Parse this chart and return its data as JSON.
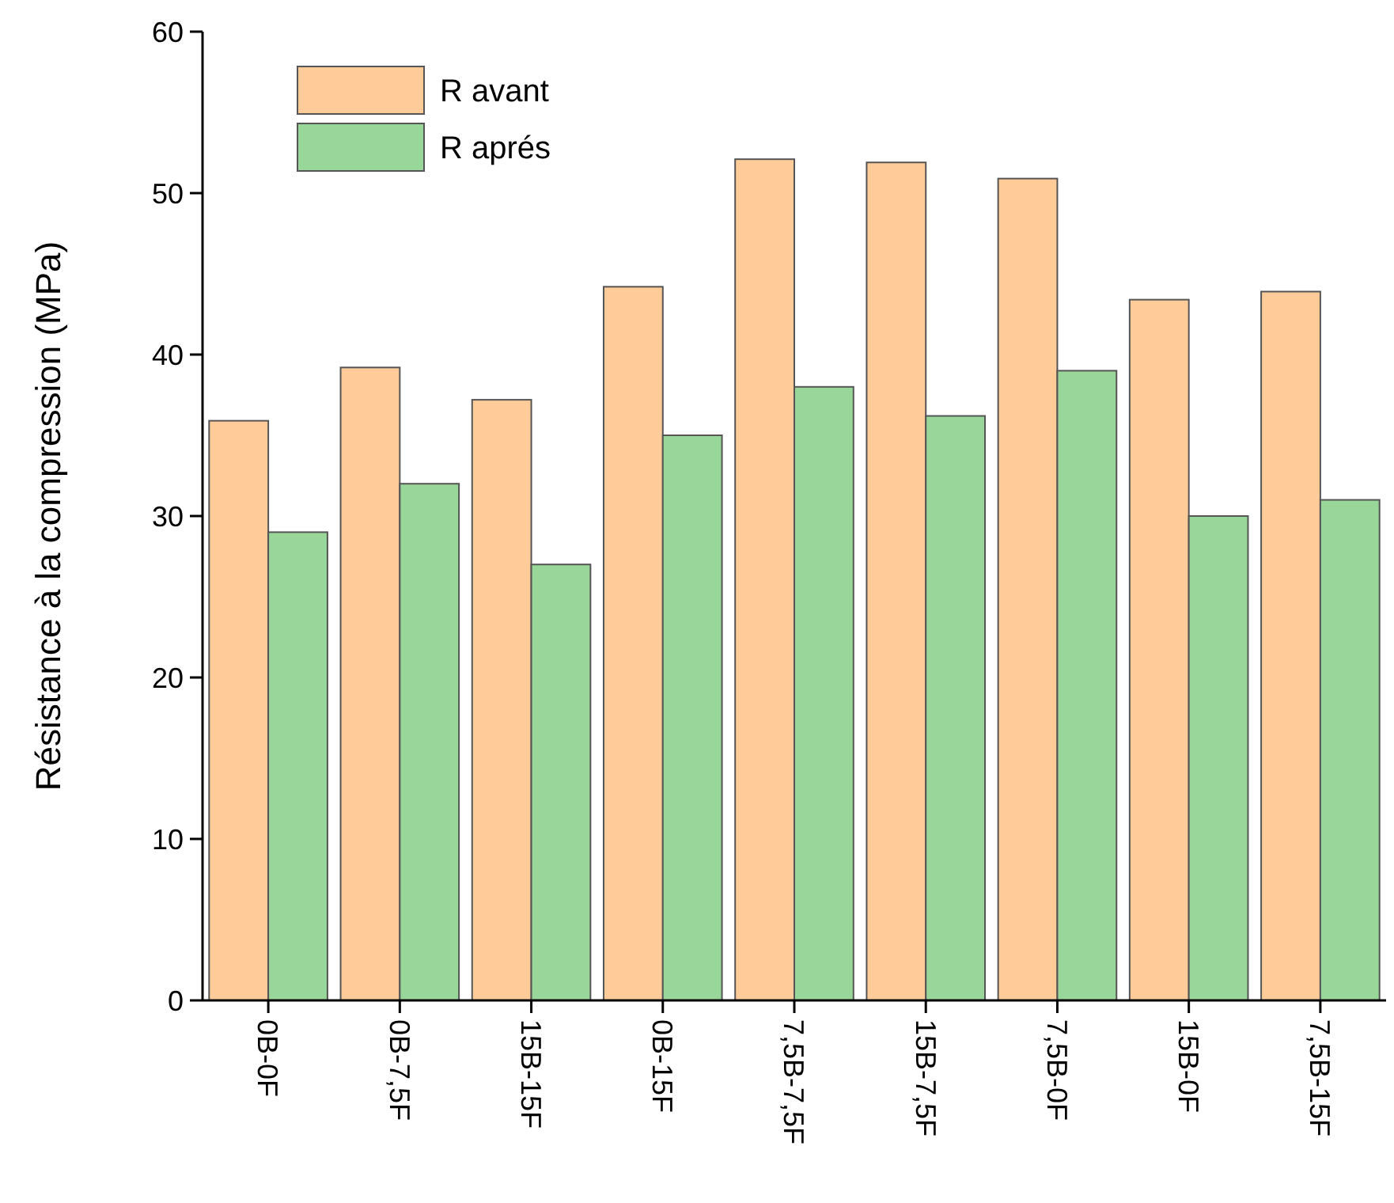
{
  "chart_data": {
    "type": "bar",
    "ylabel": "Résistance à la compression (MPa)",
    "categories": [
      "0B-0F",
      "0B-7,5F",
      "15B-15F",
      "0B-15F",
      "7,5B-7,5F",
      "15B-7,5F",
      "7,5B-0F",
      "15B-0F",
      "7,5B-15F"
    ],
    "series": [
      {
        "name": "R avant",
        "color": "#ffcc99",
        "values": [
          35.9,
          39.2,
          37.2,
          44.2,
          52.1,
          51.9,
          50.9,
          43.4,
          43.9
        ]
      },
      {
        "name": "R aprés",
        "color": "#99d699",
        "values": [
          29,
          32,
          27,
          35,
          38,
          36.2,
          39,
          30,
          31
        ]
      }
    ],
    "ylim": [
      0,
      60
    ],
    "yticks": [
      0,
      10,
      20,
      30,
      40,
      50,
      60
    ],
    "legend": "top left",
    "grid": false
  }
}
